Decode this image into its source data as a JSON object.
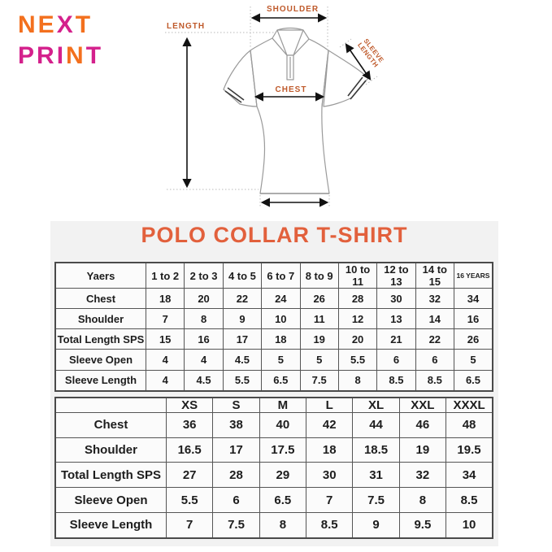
{
  "logo": {
    "line1": [
      {
        "text": "N",
        "color": "#F3701E"
      },
      {
        "text": "E",
        "color": "#F3701E"
      },
      {
        "text": "X",
        "color": "#D4218C"
      },
      {
        "text": "T",
        "color": "#F3701E"
      }
    ],
    "line2": [
      {
        "text": "P",
        "color": "#D4218C"
      },
      {
        "text": "R",
        "color": "#D4218C"
      },
      {
        "text": "I",
        "color": "#D4218C"
      },
      {
        "text": "N",
        "color": "#F3701E"
      },
      {
        "text": "T",
        "color": "#D4218C"
      }
    ]
  },
  "diagram": {
    "label_color": "#BF5A2B",
    "labels": {
      "shoulder": "SHOULDER",
      "length": "LENGTH",
      "chest": "CHEST",
      "sleeve_line1": "SLEEVE",
      "sleeve_line2": "LENGTH"
    }
  },
  "title": {
    "text": "POLO COLLAR T-SHIRT",
    "color": "#E2603C"
  },
  "kids_table": {
    "header": [
      "Yaers",
      "1 to 2",
      "2 to 3",
      "4 to 5",
      "6 to 7",
      "8 to 9",
      "10 to 11",
      "12 to 13",
      "14 to 15",
      "16 YEARS"
    ],
    "rows": [
      {
        "label": "Chest",
        "values": [
          "18",
          "20",
          "22",
          "24",
          "26",
          "28",
          "30",
          "32",
          "34"
        ]
      },
      {
        "label": "Shoulder",
        "values": [
          "7",
          "8",
          "9",
          "10",
          "11",
          "12",
          "13",
          "14",
          "16"
        ]
      },
      {
        "label": "Total Length SPS",
        "values": [
          "15",
          "16",
          "17",
          "18",
          "19",
          "20",
          "21",
          "22",
          "26"
        ]
      },
      {
        "label": "Sleeve Open",
        "values": [
          "4",
          "4",
          "4.5",
          "5",
          "5",
          "5.5",
          "6",
          "6",
          "5"
        ]
      },
      {
        "label": "Sleeve Length",
        "values": [
          "4",
          "4.5",
          "5.5",
          "6.5",
          "7.5",
          "8",
          "8.5",
          "8.5",
          "6.5"
        ]
      }
    ]
  },
  "adult_table": {
    "header": [
      "",
      "XS",
      "S",
      "M",
      "L",
      "XL",
      "XXL",
      "XXXL"
    ],
    "rows": [
      {
        "label": "Chest",
        "values": [
          "36",
          "38",
          "40",
          "42",
          "44",
          "46",
          "48"
        ]
      },
      {
        "label": "Shoulder",
        "values": [
          "16.5",
          "17",
          "17.5",
          "18",
          "18.5",
          "19",
          "19.5"
        ]
      },
      {
        "label": "Total Length SPS",
        "values": [
          "27",
          "28",
          "29",
          "30",
          "31",
          "32",
          "34"
        ]
      },
      {
        "label": "Sleeve Open",
        "values": [
          "5.5",
          "6",
          "6.5",
          "7",
          "7.5",
          "8",
          "8.5"
        ]
      },
      {
        "label": "Sleeve Length",
        "values": [
          "7",
          "7.5",
          "8",
          "8.5",
          "9",
          "9.5",
          "10"
        ]
      }
    ]
  }
}
